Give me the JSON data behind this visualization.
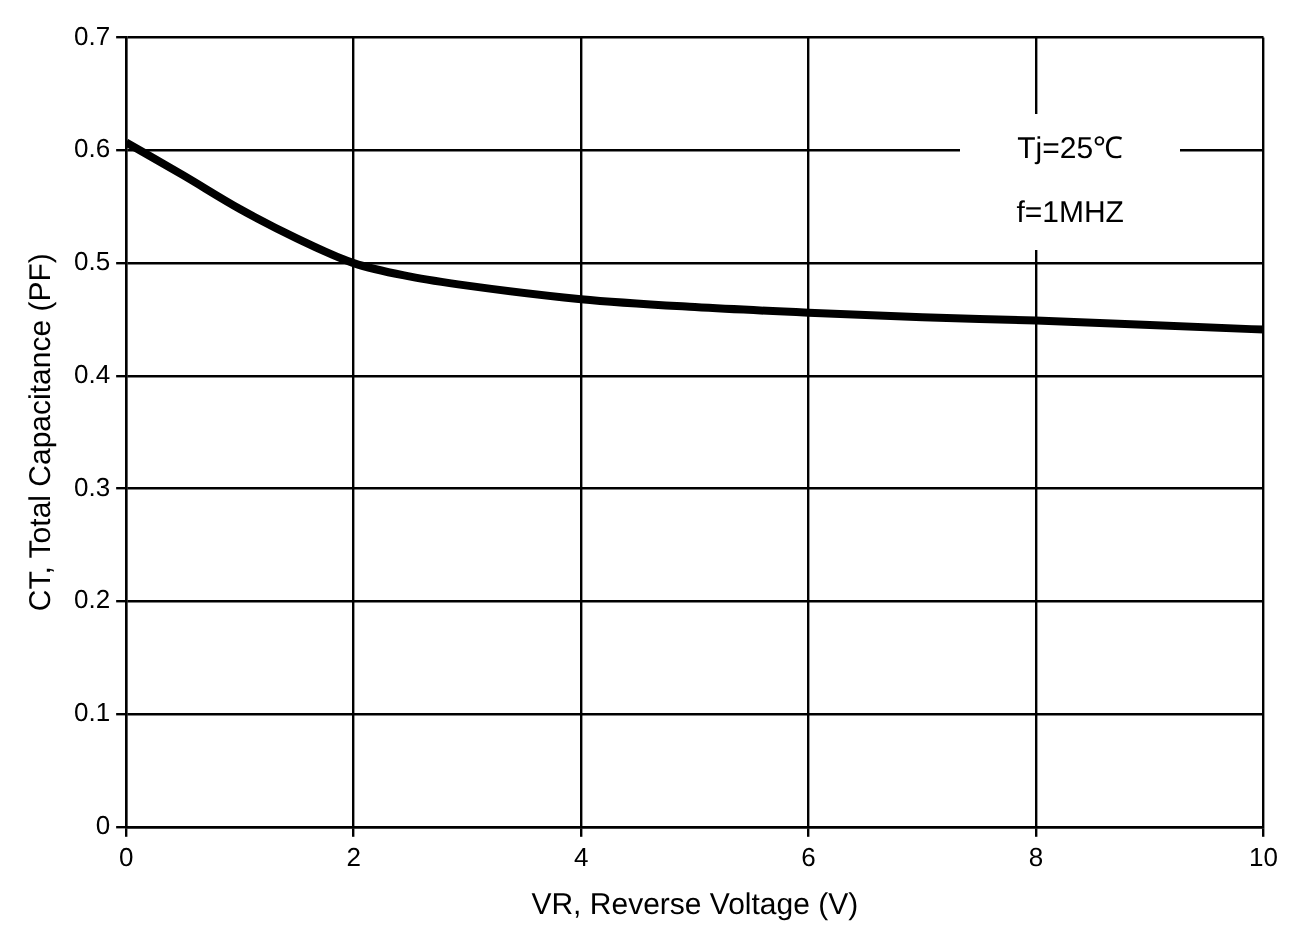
{
  "chart_data": {
    "type": "line",
    "xlabel": "VR, Reverse Voltage (V)",
    "ylabel": "CT, Total Capacitance (PF)",
    "x": [
      0,
      0.5,
      1,
      1.5,
      2,
      2.5,
      3,
      4,
      5,
      6,
      7,
      8,
      9,
      10
    ],
    "series": [
      {
        "color": "#000000",
        "values": [
          0.607,
          0.578,
          0.548,
          0.522,
          0.5,
          0.488,
          0.48,
          0.468,
          0.461,
          0.456,
          0.452,
          0.449,
          0.445,
          0.441
        ]
      }
    ],
    "xlim": [
      0,
      10
    ],
    "xticks": [
      0,
      2,
      4,
      6,
      8,
      10
    ],
    "ylim": [
      0,
      0.7
    ],
    "yticks": [
      0,
      0.1,
      0.2,
      0.3,
      0.4,
      0.5,
      0.6,
      0.7
    ],
    "grid": true,
    "legend": false,
    "marker": "none",
    "line_style": "solid",
    "annotations": [
      "Tj=25℃",
      "f=1MHZ"
    ]
  }
}
